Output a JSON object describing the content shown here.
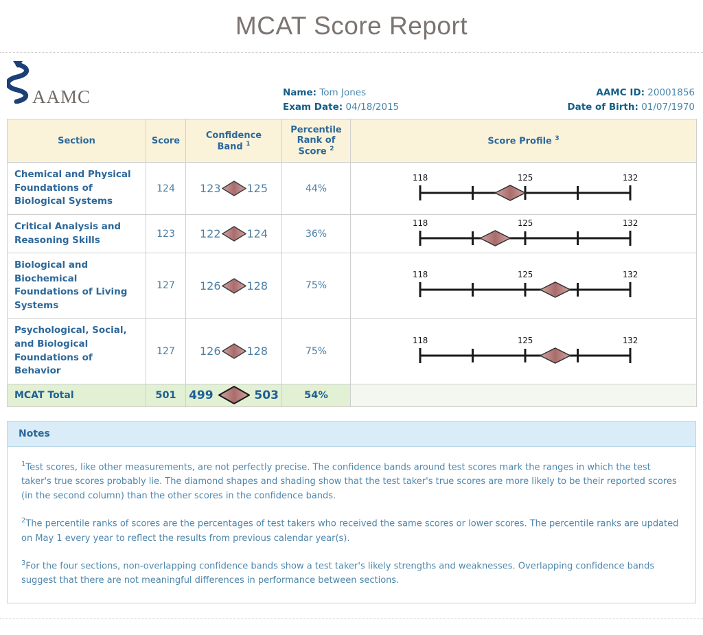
{
  "title": "MCAT Score Report",
  "logo": {
    "icon": "caduceus-icon",
    "text": "AAMC"
  },
  "examinee": {
    "name_label": "Name:",
    "name_value": "Tom Jones",
    "exam_date_label": "Exam Date:",
    "exam_date_value": "04/18/2015",
    "aamc_id_label": "AAMC ID:",
    "aamc_id_value": "20001856",
    "dob_label": "Date of Birth:",
    "dob_value": "01/07/1970"
  },
  "table": {
    "headers": {
      "section": "Section",
      "score": "Score",
      "confidence_band": "Confidence Band",
      "confidence_band_sup": "1",
      "percentile": "Percentile Rank of Score",
      "percentile_sup": "2",
      "score_profile": "Score Profile",
      "score_profile_sup": "3"
    }
  },
  "chart_data": {
    "type": "table",
    "columns": [
      "Section",
      "Score",
      "Confidence Band",
      "Percentile Rank of Score",
      "Score Profile"
    ],
    "rows": [
      {
        "section": "Chemical and Physical Foundations of Biological Systems",
        "score": 124,
        "band_low": 123,
        "band_high": 125,
        "percentile": "44%",
        "is_total": false
      },
      {
        "section": "Critical Analysis and Reasoning Skills",
        "score": 123,
        "band_low": 122,
        "band_high": 124,
        "percentile": "36%",
        "is_total": false
      },
      {
        "section": "Biological and Biochemical Foundations of Living Systems",
        "score": 127,
        "band_low": 126,
        "band_high": 128,
        "percentile": "75%",
        "is_total": false
      },
      {
        "section": "Psychological, Social, and Biological Foundations of Behavior",
        "score": 127,
        "band_low": 126,
        "band_high": 128,
        "percentile": "75%",
        "is_total": false
      },
      {
        "section": "MCAT Total",
        "score": 501,
        "band_low": 499,
        "band_high": 503,
        "percentile": "54%",
        "is_total": true
      }
    ],
    "profile_axis": {
      "min": 118,
      "max": 132,
      "ticks": [
        118,
        121.5,
        125,
        128.5,
        132
      ],
      "tick_labels": [
        "118",
        "125",
        "132"
      ]
    }
  },
  "notes": {
    "header": "Notes",
    "items": [
      {
        "sup": "1",
        "text": "Test scores, like other measurements, are not perfectly precise. The confidence bands around test scores mark the ranges in which the test taker's true scores probably lie. The diamond shapes and shading show that the test taker's true scores are more likely to be their reported scores (in the second column) than the other scores in the confidence bands."
      },
      {
        "sup": "2",
        "text": "The percentile ranks of scores are the percentages of test takers who received the same scores or lower scores. The percentile ranks are updated on May 1 every year to reflect the results from previous calendar year(s)."
      },
      {
        "sup": "3",
        "text": "For the four sections, non-overlapping confidence bands show a test taker's likely strengths and weaknesses. Overlapping confidence bands suggest that there are not meaningful differences in performance between sections."
      }
    ]
  },
  "colors": {
    "header_cell_bg": "#faf3da",
    "total_row_bg": "#e2f0d4",
    "notes_header_bg": "#d9ecf7",
    "notes_border": "#b9d7e8",
    "heading_blue": "#2d689a",
    "value_blue": "#4a7fa5",
    "label_teal": "#155e87",
    "diamond_center": "#a96c6c",
    "diamond_edge": "#d0a5a1",
    "logo_navy": "#1c3f77",
    "axis_black": "#1a1a1a"
  }
}
